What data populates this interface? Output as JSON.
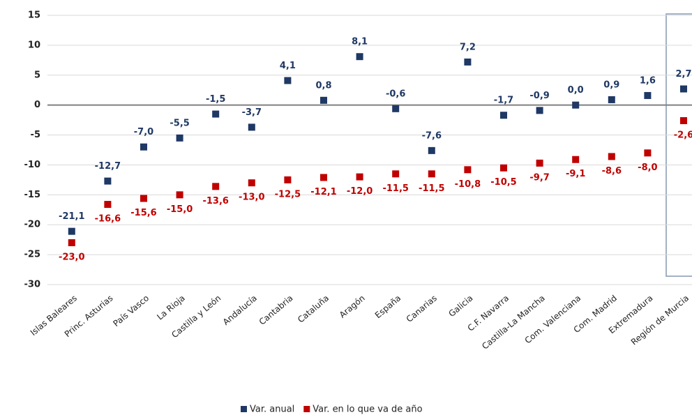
{
  "chart_data": {
    "type": "scatter",
    "categories": [
      "Islas Baleares",
      "Princ. Asturias",
      "País Vasco",
      "La Rioja",
      "Castilla y León",
      "Andalucía",
      "Cantabria",
      "Cataluña",
      "Aragón",
      "España",
      "Canarias",
      "Galicia",
      "C.F. Navarra",
      "Castilla-La Mancha",
      "Com. Valenciana",
      "Com. Madrid",
      "Extremadura",
      "Región de Murcia"
    ],
    "series": [
      {
        "name": "Var. anual",
        "color": "#1f3864",
        "values": [
          -21.1,
          -12.7,
          -7.0,
          -5.5,
          -1.5,
          -3.7,
          4.1,
          0.8,
          8.1,
          -0.6,
          -7.6,
          7.2,
          -1.7,
          -0.9,
          0.0,
          0.9,
          1.6,
          2.7
        ],
        "value_labels": [
          "-21,1",
          "-12,7",
          "-7,0",
          "-5,5",
          "-1,5",
          "-3,7",
          "4,1",
          "0,8",
          "8,1",
          "-0,6",
          "-7,6",
          "7,2",
          "-1,7",
          "-0,9",
          "0,0",
          "0,9",
          "1,6",
          "2,7"
        ]
      },
      {
        "name": "Var.  en lo que va de año",
        "color": "#c00000",
        "values": [
          -23.0,
          -16.6,
          -15.6,
          -15.0,
          -13.6,
          -13.0,
          -12.5,
          -12.1,
          -12.0,
          -11.5,
          -11.5,
          -10.8,
          -10.5,
          -9.7,
          -9.1,
          -8.6,
          -8.0,
          -2.6
        ],
        "value_labels": [
          "-23,0",
          "-16,6",
          "-15,6",
          "-15,0",
          "-13,6",
          "-13,0",
          "-12,5",
          "-12,1",
          "-12,0",
          "-11,5",
          "-11,5",
          "-10,8",
          "-10,5",
          "-9,7",
          "-9,1",
          "-8,6",
          "-8,0",
          "-2,6"
        ]
      }
    ],
    "ylim": [
      -30,
      15
    ],
    "yticks": [
      15,
      10,
      5,
      0,
      -5,
      -10,
      -15,
      -20,
      -25,
      -30
    ],
    "grid": true
  }
}
